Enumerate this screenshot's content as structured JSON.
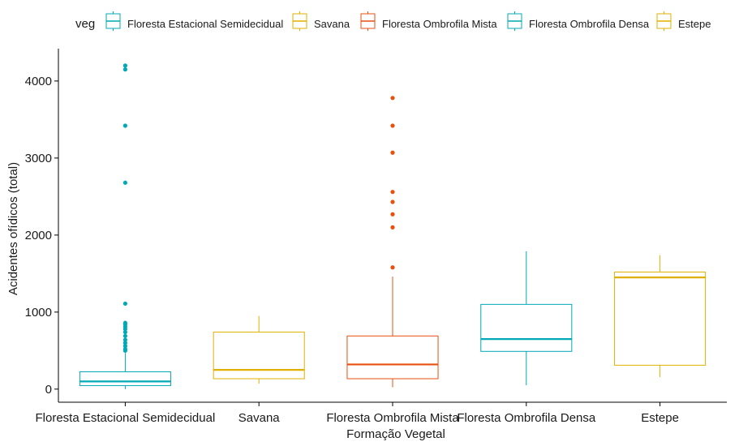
{
  "chart_data": {
    "type": "boxplot",
    "title": "",
    "xlabel": "Formação Vegetal",
    "ylabel": "Acidentes ofídicos (total)",
    "ylim": [
      -170,
      4420
    ],
    "yticks": [
      0,
      1000,
      2000,
      3000,
      4000
    ],
    "grid": false,
    "legend": {
      "title": "veg",
      "position": "top"
    },
    "categories": [
      "Floresta Estacional Semidecidual",
      "Savana",
      "Floresta Ombrofila Mista",
      "Floresta Ombrofila Densa",
      "Estepe"
    ],
    "series": [
      {
        "name": "Floresta Estacional Semidecidual",
        "color": "#00a9b5",
        "whisker_low": 0,
        "q1": 45,
        "median": 100,
        "q3": 225,
        "whisker_high": 470,
        "outliers": [
          500,
          520,
          560,
          600,
          640,
          690,
          740,
          780,
          810,
          840,
          860,
          1110,
          2680,
          3420,
          4150,
          4200
        ]
      },
      {
        "name": "Savana",
        "color": "#e0b000",
        "whisker_low": 70,
        "q1": 135,
        "median": 250,
        "q3": 740,
        "whisker_high": 950,
        "outliers": []
      },
      {
        "name": "Floresta Ombrofila Mista",
        "color": "#e8500f",
        "whisker_low": 25,
        "q1": 135,
        "median": 320,
        "q3": 690,
        "whisker_high": 1460,
        "outliers": [
          1580,
          2100,
          2270,
          2430,
          2560,
          3070,
          3420,
          3780
        ]
      },
      {
        "name": "Floresta Ombrofila Densa",
        "color": "#00a9b5",
        "whisker_low": 50,
        "q1": 490,
        "median": 650,
        "q3": 1100,
        "whisker_high": 1790,
        "outliers": []
      },
      {
        "name": "Estepe",
        "color": "#e0b000",
        "whisker_low": 155,
        "q1": 310,
        "median": 1450,
        "q3": 1520,
        "whisker_high": 1740,
        "outliers": []
      }
    ]
  }
}
